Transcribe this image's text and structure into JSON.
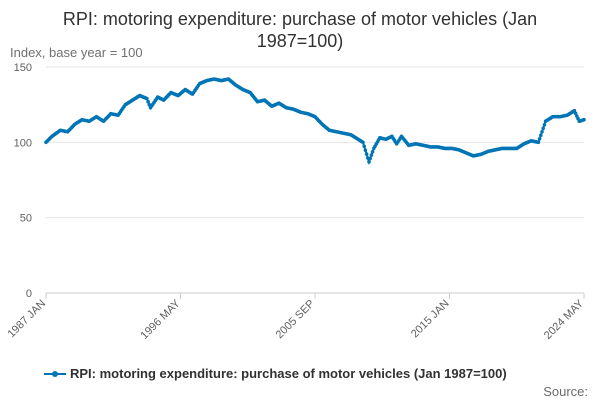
{
  "chart_data": {
    "type": "line",
    "title": "RPI: motoring expenditure: purchase of motor vehicles (Jan 1987=100)",
    "subtitle": "Index, base year = 100",
    "xlabel": "",
    "ylabel": "Index, base year = 100",
    "ylim": [
      0,
      150
    ],
    "yticks": [
      0,
      50,
      100,
      150
    ],
    "x_range": [
      "1987 JAN",
      "2024 MAY"
    ],
    "x_tick_labels": [
      "1987 JAN",
      "1996 MAY",
      "2005 SEP",
      "2015 JAN",
      "2024 MAY"
    ],
    "grid": true,
    "legend_position": "bottom",
    "source_label": "Source:",
    "series": [
      {
        "name": "RPI: motoring expenditure: purchase of motor vehicles (Jan 1987=100)",
        "color": "#0075b6",
        "points": [
          [
            "1987-01",
            100
          ],
          [
            "1987-06",
            104
          ],
          [
            "1988-01",
            108
          ],
          [
            "1988-07",
            107
          ],
          [
            "1989-01",
            112
          ],
          [
            "1989-07",
            115
          ],
          [
            "1990-01",
            114
          ],
          [
            "1990-07",
            117
          ],
          [
            "1991-01",
            114
          ],
          [
            "1991-07",
            119
          ],
          [
            "1992-01",
            118
          ],
          [
            "1992-07",
            125
          ],
          [
            "1993-01",
            128
          ],
          [
            "1993-07",
            131
          ],
          [
            "1994-01",
            129
          ],
          [
            "1994-04",
            123
          ],
          [
            "1994-10",
            130
          ],
          [
            "1995-03",
            128
          ],
          [
            "1995-09",
            133
          ],
          [
            "1996-03",
            131
          ],
          [
            "1996-09",
            135
          ],
          [
            "1997-03",
            132
          ],
          [
            "1997-09",
            139
          ],
          [
            "1998-03",
            141
          ],
          [
            "1998-09",
            142
          ],
          [
            "1999-03",
            141
          ],
          [
            "1999-09",
            142
          ],
          [
            "2000-03",
            138
          ],
          [
            "2000-09",
            135
          ],
          [
            "2001-03",
            133
          ],
          [
            "2001-09",
            127
          ],
          [
            "2002-03",
            128
          ],
          [
            "2002-09",
            124
          ],
          [
            "2003-03",
            126
          ],
          [
            "2003-09",
            123
          ],
          [
            "2004-03",
            122
          ],
          [
            "2004-09",
            120
          ],
          [
            "2005-03",
            119
          ],
          [
            "2005-09",
            117
          ],
          [
            "2006-03",
            112
          ],
          [
            "2006-09",
            108
          ],
          [
            "2007-03",
            107
          ],
          [
            "2007-09",
            106
          ],
          [
            "2008-03",
            105
          ],
          [
            "2008-09",
            102
          ],
          [
            "2009-01",
            100
          ],
          [
            "2009-06",
            87
          ],
          [
            "2009-10",
            96
          ],
          [
            "2010-03",
            103
          ],
          [
            "2010-08",
            102
          ],
          [
            "2011-01",
            104
          ],
          [
            "2011-05",
            99
          ],
          [
            "2011-09",
            104
          ],
          [
            "2012-03",
            98
          ],
          [
            "2012-09",
            99
          ],
          [
            "2013-03",
            98
          ],
          [
            "2013-09",
            97
          ],
          [
            "2014-03",
            97
          ],
          [
            "2014-09",
            96
          ],
          [
            "2015-03",
            96
          ],
          [
            "2015-09",
            95
          ],
          [
            "2016-03",
            93
          ],
          [
            "2016-09",
            91
          ],
          [
            "2017-03",
            92
          ],
          [
            "2017-09",
            94
          ],
          [
            "2018-03",
            95
          ],
          [
            "2018-09",
            96
          ],
          [
            "2019-03",
            96
          ],
          [
            "2019-09",
            96
          ],
          [
            "2020-03",
            99
          ],
          [
            "2020-09",
            101
          ],
          [
            "2021-03",
            100
          ],
          [
            "2021-09",
            114
          ],
          [
            "2022-03",
            117
          ],
          [
            "2022-09",
            117
          ],
          [
            "2023-03",
            118
          ],
          [
            "2023-09",
            121
          ],
          [
            "2024-01",
            114
          ],
          [
            "2024-05",
            115
          ]
        ]
      }
    ]
  }
}
